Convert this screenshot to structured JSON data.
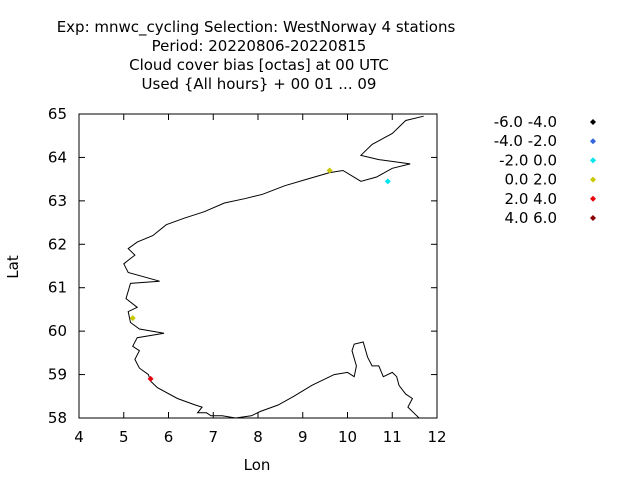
{
  "chart_data": {
    "type": "scatter",
    "title_lines": [
      "Exp: mnwc_cycling   Selection: WestNorway       4 stations",
      "Period: 20220806-20220815",
      "Cloud cover bias [octas] at  00 UTC",
      "Used {All hours} + 00 01 ... 09"
    ],
    "xlabel": "Lon",
    "ylabel": "Lat",
    "xlim": [
      4,
      12
    ],
    "ylim": [
      58,
      65
    ],
    "xticks": [
      4,
      5,
      6,
      7,
      8,
      9,
      10,
      11,
      12
    ],
    "yticks": [
      58,
      59,
      60,
      61,
      62,
      63,
      64,
      65
    ],
    "legend_position": "right",
    "legend": [
      {
        "label": "-6.0 -4.0",
        "color": "#000000"
      },
      {
        "label": "-4.0 -2.0",
        "color": "#3366dd"
      },
      {
        "label": "-2.0 0.0",
        "color": "#00e5ee"
      },
      {
        "label": "0.0 2.0",
        "color": "#c8c800"
      },
      {
        "label": "2.0 4.0",
        "color": "#e8000b"
      },
      {
        "label": "4.0 6.0",
        "color": "#8b0000"
      }
    ],
    "points": [
      {
        "lon": 9.6,
        "lat": 63.7,
        "class": 3
      },
      {
        "lon": 10.9,
        "lat": 63.45,
        "class": 2
      },
      {
        "lon": 5.2,
        "lat": 60.3,
        "class": 3
      },
      {
        "lon": 5.6,
        "lat": 58.9,
        "class": 4
      }
    ],
    "coastline": [
      [
        [
          5.6,
          58.85
        ],
        [
          5.75,
          58.7
        ],
        [
          6.2,
          58.45
        ],
        [
          6.6,
          58.3
        ],
        [
          6.75,
          58.25
        ],
        [
          6.65,
          58.12
        ],
        [
          6.85,
          58.12
        ],
        [
          6.95,
          58.05
        ],
        [
          7.2,
          58.05
        ],
        [
          7.5,
          58.0
        ],
        [
          7.85,
          58.05
        ],
        [
          8.05,
          58.15
        ],
        [
          8.45,
          58.3
        ],
        [
          8.8,
          58.5
        ],
        [
          9.2,
          58.75
        ],
        [
          9.5,
          58.9
        ],
        [
          9.7,
          59.0
        ],
        [
          10.0,
          59.05
        ],
        [
          10.15,
          58.95
        ],
        [
          10.2,
          59.2
        ],
        [
          10.1,
          59.55
        ],
        [
          10.15,
          59.7
        ],
        [
          10.35,
          59.75
        ],
        [
          10.45,
          59.4
        ],
        [
          10.55,
          59.2
        ],
        [
          10.7,
          59.2
        ],
        [
          10.8,
          58.95
        ],
        [
          11.0,
          59.05
        ],
        [
          11.1,
          58.95
        ],
        [
          11.15,
          58.75
        ],
        [
          11.3,
          58.55
        ],
        [
          11.45,
          58.45
        ],
        [
          11.35,
          58.25
        ],
        [
          11.5,
          58.1
        ],
        [
          11.6,
          58.0
        ]
      ],
      [
        [
          5.6,
          58.85
        ],
        [
          5.55,
          59.0
        ],
        [
          5.35,
          59.15
        ],
        [
          5.25,
          59.35
        ],
        [
          5.35,
          59.55
        ],
        [
          5.2,
          59.65
        ],
        [
          5.3,
          59.85
        ],
        [
          5.9,
          59.95
        ],
        [
          5.35,
          60.05
        ],
        [
          5.15,
          60.2
        ],
        [
          5.1,
          60.45
        ],
        [
          5.3,
          60.55
        ],
        [
          5.05,
          60.75
        ],
        [
          5.15,
          61.1
        ],
        [
          5.8,
          61.15
        ],
        [
          5.1,
          61.35
        ],
        [
          5.0,
          61.55
        ],
        [
          5.25,
          61.75
        ],
        [
          5.1,
          61.9
        ],
        [
          5.3,
          62.05
        ],
        [
          5.65,
          62.2
        ],
        [
          5.95,
          62.45
        ],
        [
          6.35,
          62.6
        ],
        [
          6.8,
          62.75
        ],
        [
          7.25,
          62.95
        ],
        [
          7.7,
          63.05
        ],
        [
          8.1,
          63.15
        ],
        [
          8.6,
          63.35
        ],
        [
          9.1,
          63.5
        ],
        [
          9.6,
          63.65
        ],
        [
          9.9,
          63.7
        ],
        [
          10.3,
          63.45
        ],
        [
          10.65,
          63.55
        ],
        [
          11.0,
          63.75
        ],
        [
          11.4,
          63.85
        ],
        [
          10.7,
          63.95
        ],
        [
          10.3,
          64.05
        ],
        [
          10.55,
          64.3
        ],
        [
          11.0,
          64.55
        ],
        [
          11.3,
          64.85
        ],
        [
          11.7,
          64.95
        ]
      ]
    ]
  }
}
